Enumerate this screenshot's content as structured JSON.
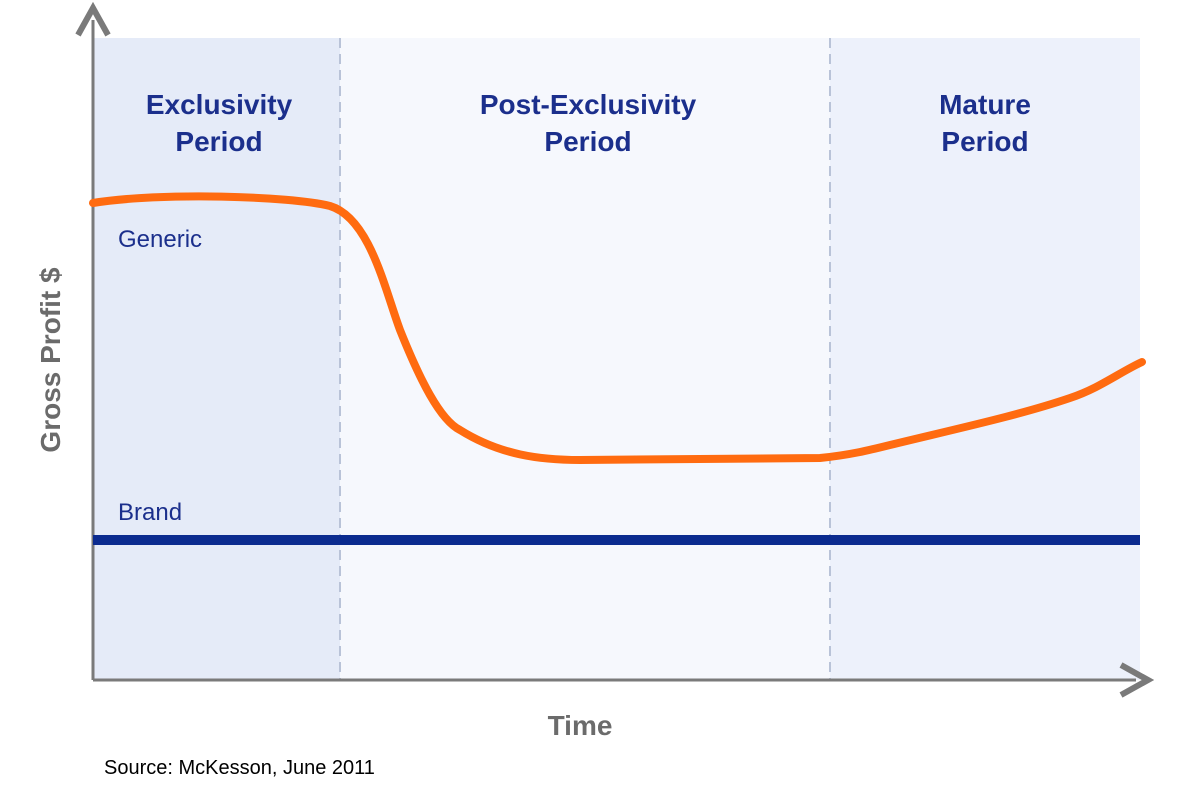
{
  "regions": [
    {
      "title_lines": [
        "Exclusivity",
        "Period"
      ]
    },
    {
      "title_lines": [
        "Post-Exclusivity",
        "Period"
      ]
    },
    {
      "title_lines": [
        "Mature",
        "Period"
      ]
    }
  ],
  "series_labels": {
    "generic": "Generic",
    "brand": "Brand"
  },
  "axes": {
    "y_label": "Gross Profit $",
    "x_label": "Time"
  },
  "source": "Source: McKesson, June 2011"
}
